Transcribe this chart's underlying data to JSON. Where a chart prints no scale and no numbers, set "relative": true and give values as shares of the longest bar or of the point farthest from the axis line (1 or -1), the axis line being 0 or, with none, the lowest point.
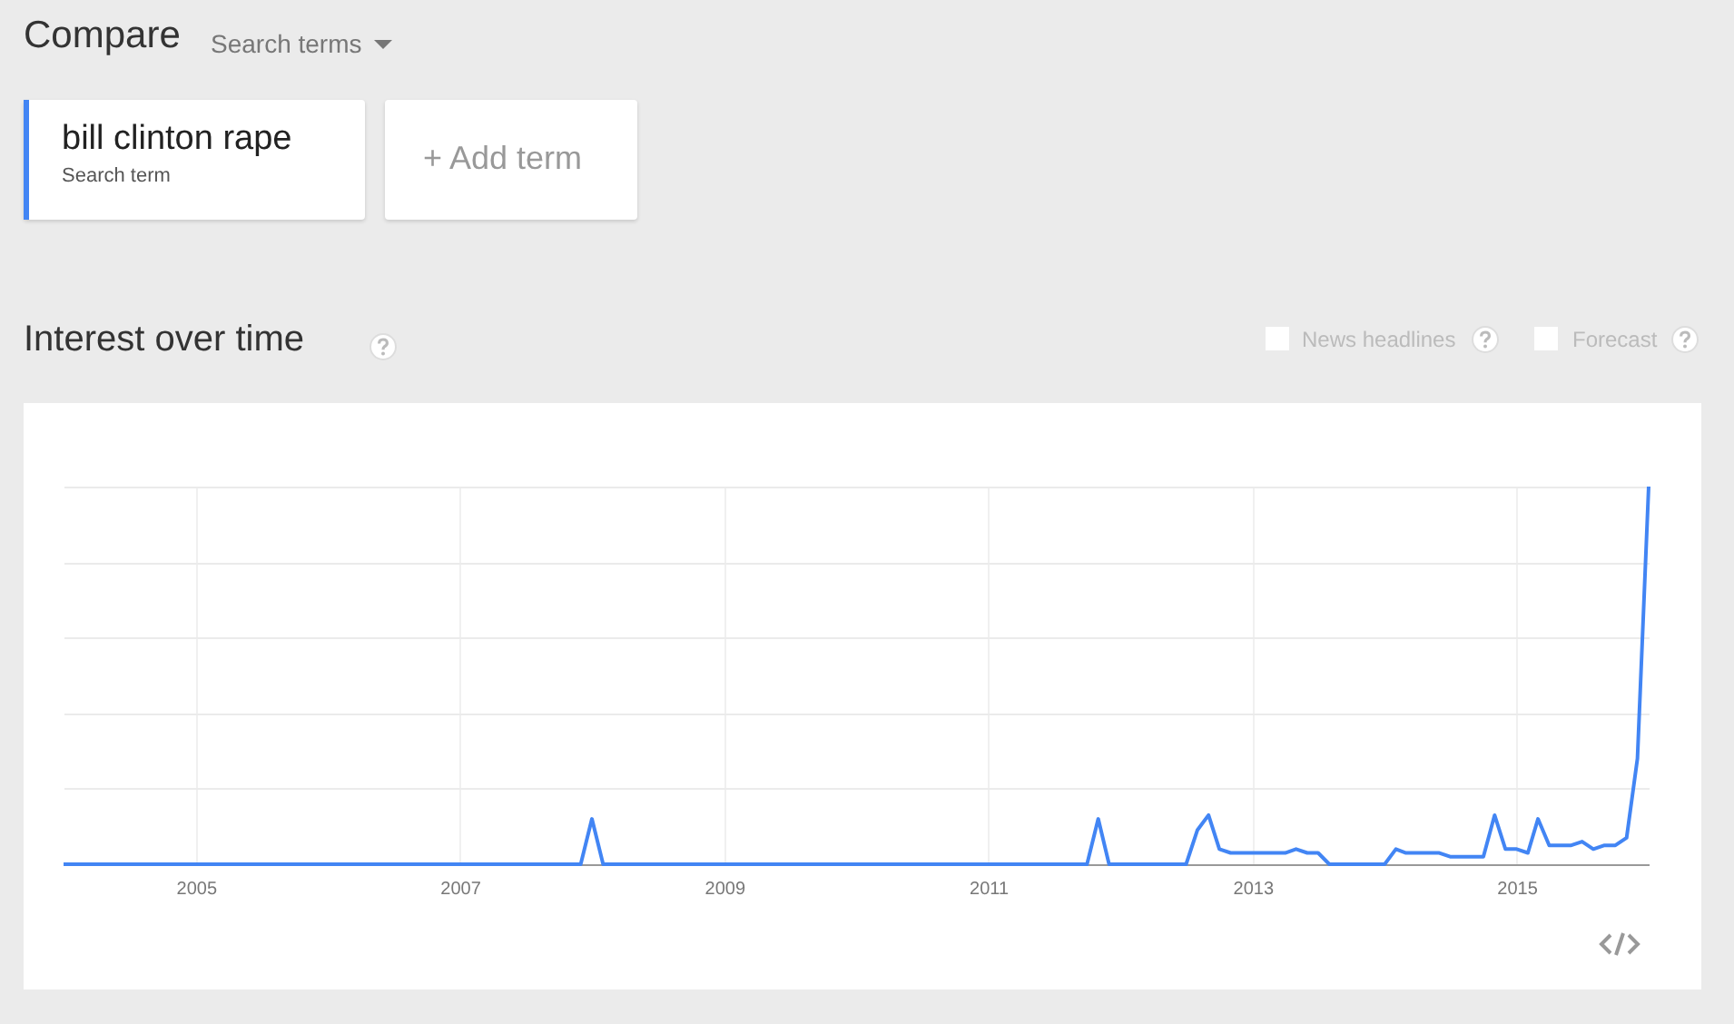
{
  "chart_data": {
    "type": "line",
    "title": "Interest over time",
    "annotations": [
      "Compare",
      "Search terms",
      "Search term",
      "+ Add term",
      "News headlines",
      "Forecast"
    ],
    "relative": true,
    "grid": true,
    "legend": "top left",
    "xlim": [
      "2004-01",
      "2016-01"
    ],
    "xticks": [
      "2005",
      "2007",
      "2009",
      "2011",
      "2013",
      "2015"
    ],
    "series": [
      {
        "name": "bill clinton rape",
        "color": "#4285f4",
        "x": [
          "2004-01",
          "2007-12",
          "2008-01",
          "2008-02",
          "2011-10",
          "2011-11",
          "2011-12",
          "2012-07",
          "2012-08",
          "2012-09",
          "2012-10",
          "2012-11",
          "2013-04",
          "2013-05",
          "2013-06",
          "2013-07",
          "2013-08",
          "2014-01",
          "2014-02",
          "2014-03",
          "2014-06",
          "2014-07",
          "2014-10",
          "2014-11",
          "2014-12",
          "2015-01",
          "2015-02",
          "2015-03",
          "2015-04",
          "2015-06",
          "2015-07",
          "2015-08",
          "2015-09",
          "2015-10",
          "2015-11",
          "2015-12",
          "2016-01"
        ],
        "values": [
          0,
          0,
          0.12,
          0,
          0,
          0.12,
          0,
          0,
          0.09,
          0.13,
          0.04,
          0.03,
          0.03,
          0.04,
          0.03,
          0.03,
          0,
          0,
          0.04,
          0.03,
          0.03,
          0.02,
          0.02,
          0.13,
          0.04,
          0.04,
          0.03,
          0.12,
          0.05,
          0.05,
          0.06,
          0.04,
          0.05,
          0.05,
          0.07,
          0.28,
          1
        ]
      }
    ]
  }
}
